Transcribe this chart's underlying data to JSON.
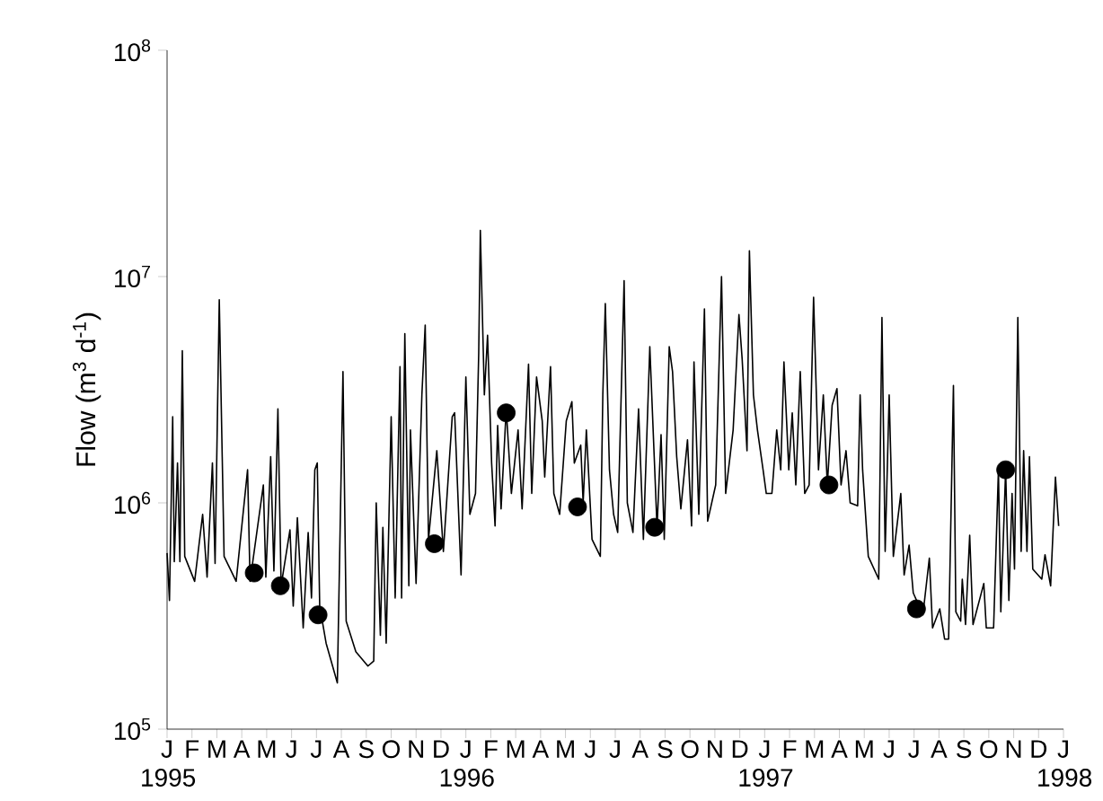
{
  "chart_data": {
    "type": "line",
    "ylabel": "Flow (m$^{3}$ d$^{-1}$)",
    "log": "y",
    "xlim": [
      "1995-01-01",
      "1998-01-01"
    ],
    "ylim": [
      100000,
      100000000
    ],
    "yticks": [
      {
        "value": 100000,
        "label": "10$^{5}$"
      },
      {
        "value": 1000000,
        "label": "10$^{6}$"
      },
      {
        "value": 10000000,
        "label": "10$^{7}$"
      },
      {
        "value": 100000000,
        "label": "10$^{8}$"
      }
    ],
    "xticks": [
      {
        "value": "1995-01-01",
        "label": "J 1995"
      },
      {
        "value": "1995-02-01",
        "label": "F"
      },
      {
        "value": "1995-03-01",
        "label": "M"
      },
      {
        "value": "1995-04-01",
        "label": "A"
      },
      {
        "value": "1995-05-01",
        "label": "M"
      },
      {
        "value": "1995-06-01",
        "label": "J"
      },
      {
        "value": "1995-07-01",
        "label": "J"
      },
      {
        "value": "1995-08-01",
        "label": "A"
      },
      {
        "value": "1995-09-01",
        "label": "S"
      },
      {
        "value": "1995-10-01",
        "label": "O"
      },
      {
        "value": "1995-11-01",
        "label": "N"
      },
      {
        "value": "1995-12-01",
        "label": "D"
      },
      {
        "value": "1996-01-01",
        "label": "J 1996"
      },
      {
        "value": "1996-02-01",
        "label": "F"
      },
      {
        "value": "1996-03-01",
        "label": "M"
      },
      {
        "value": "1996-04-01",
        "label": "A"
      },
      {
        "value": "1996-05-01",
        "label": "M"
      },
      {
        "value": "1996-06-01",
        "label": "J"
      },
      {
        "value": "1996-07-01",
        "label": "J"
      },
      {
        "value": "1996-08-01",
        "label": "A"
      },
      {
        "value": "1996-09-01",
        "label": "S"
      },
      {
        "value": "1996-10-01",
        "label": "O"
      },
      {
        "value": "1996-11-01",
        "label": "N"
      },
      {
        "value": "1996-12-01",
        "label": "D"
      },
      {
        "value": "1997-01-01",
        "label": "J 1997"
      },
      {
        "value": "1997-02-01",
        "label": "F"
      },
      {
        "value": "1997-03-01",
        "label": "M"
      },
      {
        "value": "1997-04-01",
        "label": "A"
      },
      {
        "value": "1997-05-01",
        "label": "M"
      },
      {
        "value": "1997-06-01",
        "label": "J"
      },
      {
        "value": "1997-07-01",
        "label": "J"
      },
      {
        "value": "1997-08-01",
        "label": "A"
      },
      {
        "value": "1997-09-01",
        "label": "S"
      },
      {
        "value": "1997-10-01",
        "label": "O"
      },
      {
        "value": "1997-11-01",
        "label": "N"
      },
      {
        "value": "1997-12-01",
        "label": "D"
      },
      {
        "value": "1998-01-01",
        "label": "J 1998"
      }
    ],
    "series": [
      {
        "color": "#000000",
        "line_style": "solid",
        "x": [
          "1995-01-01",
          "1995-01-04",
          "1995-01-08",
          "1995-01-10",
          "1995-01-14",
          "1995-01-17",
          "1995-01-20",
          "1995-01-23",
          "1995-02-04",
          "1995-02-13",
          "1995-02-18",
          "1995-02-24",
          "1995-02-27",
          "1995-03-04",
          "1995-03-10",
          "1995-03-25",
          "1995-04-08",
          "1995-04-11",
          "1995-04-27",
          "1995-04-30",
          "1995-05-06",
          "1995-05-10",
          "1995-05-15",
          "1995-05-19",
          "1995-05-30",
          "1995-06-03",
          "1995-06-08",
          "1995-06-15",
          "1995-06-21",
          "1995-06-25",
          "1995-06-29",
          "1995-07-02",
          "1995-07-05",
          "1995-07-13",
          "1995-07-27",
          "1995-08-03",
          "1995-08-07",
          "1995-08-19",
          "1995-09-03",
          "1995-09-10",
          "1995-09-13",
          "1995-09-18",
          "1995-09-21",
          "1995-09-25",
          "1995-10-01",
          "1995-10-06",
          "1995-10-12",
          "1995-10-14",
          "1995-10-18",
          "1995-10-23",
          "1995-10-25",
          "1995-11-01",
          "1995-11-08",
          "1995-11-12",
          "1995-11-16",
          "1995-11-26",
          "1995-12-04",
          "1995-12-15",
          "1995-12-18",
          "1995-12-26",
          "1996-01-01",
          "1996-01-06",
          "1996-01-13",
          "1996-01-17",
          "1996-01-19",
          "1996-01-24",
          "1996-01-28",
          "1996-02-02",
          "1996-02-06",
          "1996-02-09",
          "1996-02-13",
          "1996-02-19",
          "1996-02-25",
          "1996-03-04",
          "1996-03-09",
          "1996-03-17",
          "1996-03-21",
          "1996-03-27",
          "1996-04-03",
          "1996-04-06",
          "1996-04-13",
          "1996-04-17",
          "1996-04-24",
          "1996-05-02",
          "1996-05-09",
          "1996-05-12",
          "1996-05-20",
          "1996-05-23",
          "1996-05-27",
          "1996-06-03",
          "1996-06-13",
          "1996-06-16",
          "1996-06-19",
          "1996-06-24",
          "1996-06-29",
          "1996-07-04",
          "1996-07-12",
          "1996-07-16",
          "1996-07-23",
          "1996-07-30",
          "1996-08-05",
          "1996-08-13",
          "1996-08-22",
          "1996-08-27",
          "1996-08-31",
          "1996-09-06",
          "1996-09-10",
          "1996-09-15",
          "1996-09-20",
          "1996-09-28",
          "1996-10-03",
          "1996-10-06",
          "1996-10-12",
          "1996-10-19",
          "1996-10-23",
          "1996-11-02",
          "1996-11-09",
          "1996-11-14",
          "1996-11-23",
          "1996-11-30",
          "1996-12-04",
          "1996-12-10",
          "1996-12-13",
          "1996-12-18",
          "1996-12-23",
          "1996-12-30",
          "1997-01-03",
          "1997-01-10",
          "1997-01-16",
          "1997-01-21",
          "1997-01-25",
          "1997-01-31",
          "1997-02-04",
          "1997-02-08",
          "1997-02-13",
          "1997-02-18",
          "1997-02-23",
          "1997-02-28",
          "1997-03-06",
          "1997-03-12",
          "1997-03-17",
          "1997-03-23",
          "1997-03-29",
          "1997-04-03",
          "1997-04-09",
          "1997-04-14",
          "1997-04-23",
          "1997-04-26",
          "1997-04-29",
          "1997-05-06",
          "1997-05-19",
          "1997-05-23",
          "1997-05-27",
          "1997-06-01",
          "1997-06-06",
          "1997-06-15",
          "1997-06-19",
          "1997-06-25",
          "1997-06-30",
          "1997-07-12",
          "1997-07-20",
          "1997-07-24",
          "1997-08-02",
          "1997-08-08",
          "1997-08-13",
          "1997-08-19",
          "1997-08-22",
          "1997-08-28",
          "1997-08-30",
          "1997-09-03",
          "1997-09-08",
          "1997-09-12",
          "1997-09-25",
          "1997-09-28",
          "1997-10-07",
          "1997-10-13",
          "1997-10-16",
          "1997-10-22",
          "1997-10-26",
          "1997-10-30",
          "1997-11-02",
          "1997-11-06",
          "1997-11-10",
          "1997-11-13",
          "1997-11-17",
          "1997-11-20",
          "1997-11-24",
          "1997-12-05",
          "1997-12-09",
          "1997-12-16",
          "1997-12-22",
          "1997-12-26"
        ],
        "values": [
          600000,
          370000,
          2400000,
          550000,
          1500000,
          550000,
          4700000,
          580000,
          450000,
          890000,
          470000,
          1500000,
          540000,
          7900000,
          580000,
          450000,
          1400000,
          450000,
          1200000,
          470000,
          1600000,
          500000,
          2600000,
          430000,
          760000,
          350000,
          860000,
          280000,
          740000,
          380000,
          1400000,
          1500000,
          350000,
          240000,
          160000,
          3800000,
          300000,
          220000,
          190000,
          200000,
          1000000,
          260000,
          780000,
          240000,
          2400000,
          380000,
          4000000,
          380000,
          5600000,
          430000,
          2100000,
          440000,
          3000000,
          6100000,
          690000,
          1700000,
          610000,
          2400000,
          2500000,
          480000,
          3600000,
          890000,
          1100000,
          4600000,
          16000000,
          3000000,
          5500000,
          1500000,
          790000,
          2200000,
          940000,
          2600000,
          1100000,
          2100000,
          940000,
          4100000,
          1100000,
          3600000,
          2300000,
          1300000,
          4000000,
          1100000,
          890000,
          2300000,
          2800000,
          1500000,
          1800000,
          1000000,
          2100000,
          690000,
          580000,
          3000000,
          7600000,
          1400000,
          890000,
          740000,
          9600000,
          1000000,
          740000,
          2600000,
          690000,
          4900000,
          780000,
          2000000,
          690000,
          4900000,
          3800000,
          1600000,
          940000,
          1900000,
          790000,
          4200000,
          890000,
          7200000,
          830000,
          1200000,
          10000000,
          1100000,
          2100000,
          6800000,
          4300000,
          1700000,
          13000000,
          3000000,
          2100000,
          1400000,
          1100000,
          1100000,
          2100000,
          1400000,
          4200000,
          1400000,
          2500000,
          1200000,
          3800000,
          1100000,
          1200000,
          8100000,
          1400000,
          3000000,
          1200000,
          2700000,
          3200000,
          1200000,
          1700000,
          1000000,
          970000,
          3000000,
          1400000,
          580000,
          460000,
          6600000,
          610000,
          3000000,
          580000,
          1100000,
          480000,
          650000,
          400000,
          320000,
          570000,
          280000,
          340000,
          250000,
          250000,
          3300000,
          330000,
          300000,
          460000,
          290000,
          720000,
          290000,
          440000,
          280000,
          280000,
          1400000,
          330000,
          1400000,
          370000,
          1100000,
          510000,
          6600000,
          610000,
          1700000,
          610000,
          1600000,
          510000,
          460000,
          590000,
          430000,
          1300000,
          790000
        ]
      },
      {
        "type": "scatter",
        "color": "#000000",
        "x": [
          "1995-04-16",
          "1995-05-18",
          "1995-07-03",
          "1995-11-23",
          "1996-02-19",
          "1996-05-16",
          "1996-08-19",
          "1997-03-19",
          "1997-07-04",
          "1997-10-22"
        ],
        "values": [
          490000,
          430000,
          320000,
          660000,
          2500000,
          960000,
          780000,
          1200000,
          340000,
          1400000
        ]
      }
    ]
  }
}
